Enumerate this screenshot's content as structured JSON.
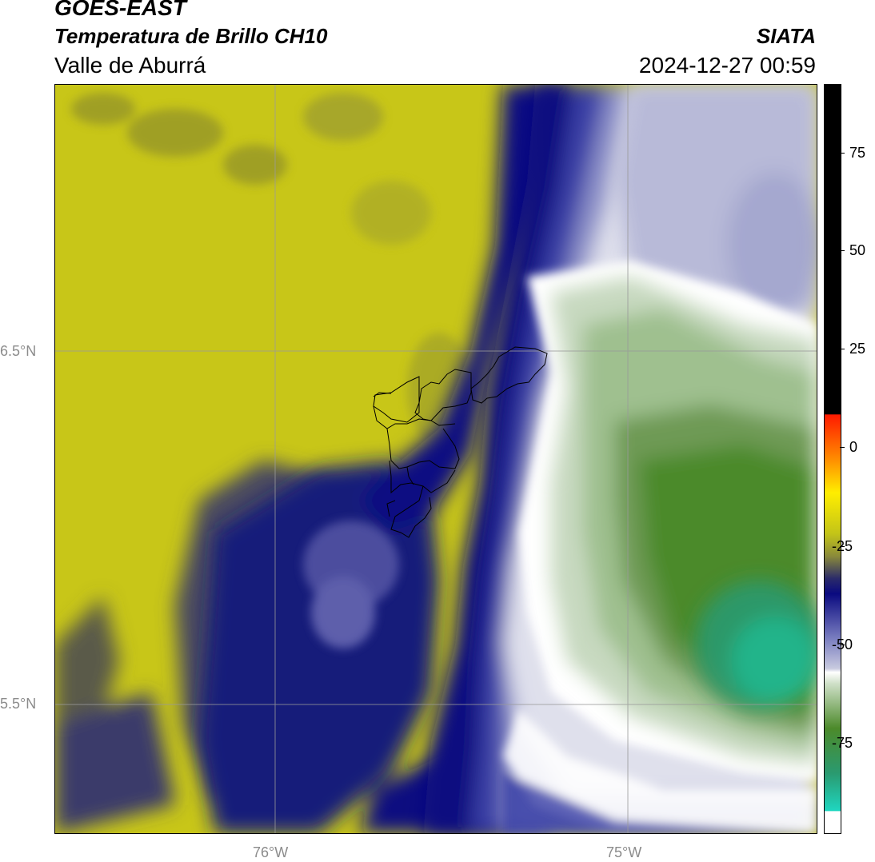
{
  "header": {
    "satellite": "GOES-EAST",
    "product": "Temperatura de Brillo CH10",
    "region": "Valle de Aburrá",
    "organization": "SIATA",
    "timestamp": "2024-12-27 00:59"
  },
  "map": {
    "lat_labels": [
      "6.5°N",
      "5.5°N"
    ],
    "lon_labels": [
      "76°W",
      "75°W"
    ]
  },
  "colorbar": {
    "tick_labels": [
      "75",
      "50",
      "25",
      "0",
      "-25",
      "-50",
      "-75"
    ],
    "colors": {
      "black_band": "#000000",
      "red": "#ff1a00",
      "orange": "#ff8c00",
      "yellow": "#ffee00",
      "olive": "#c3c418",
      "dark_navy": "#0a0a80",
      "lavender": "#c8cadf",
      "white": "#ffffff",
      "green": "#4c8a2a",
      "teal": "#1fd6c0"
    }
  }
}
